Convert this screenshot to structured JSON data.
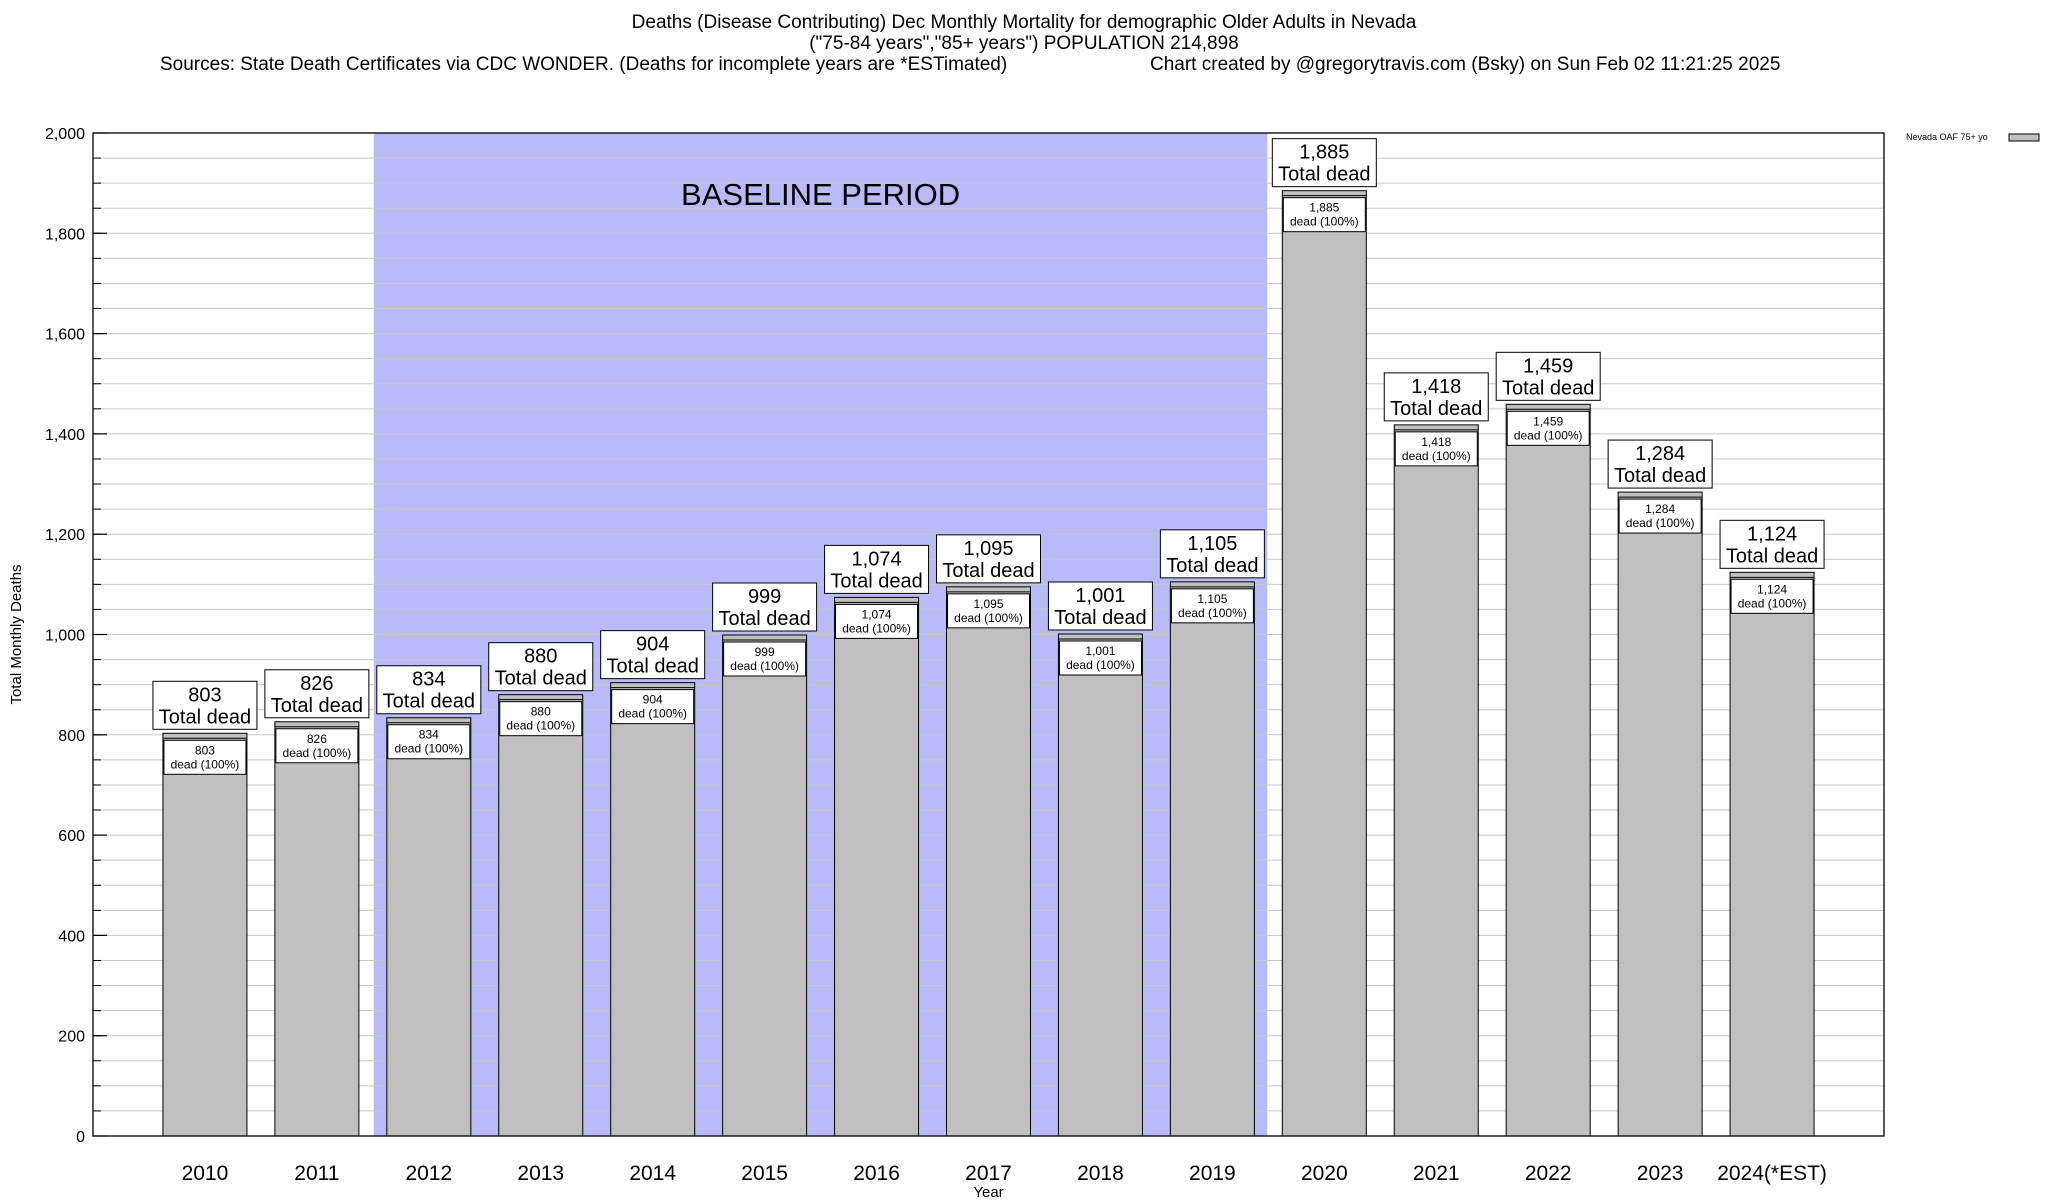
{
  "header": {
    "title_line1": "Deaths (Disease Contributing) Dec Monthly Mortality for demographic Older Adults in Nevada",
    "title_line2": "(\"75-84 years\",\"85+ years\") POPULATION 214,898",
    "sources": "Sources: State Death Certificates via CDC WONDER. (Deaths for incomplete years are *ESTimated)",
    "credit": "Chart created by @gregorytravis.com (Bsky) on Sun Feb 02 11:21:25 2025"
  },
  "colors": {
    "bar_fill": "#c0c0c0",
    "baseline_fill": "#babaf8",
    "grid": "#c8c8c8"
  },
  "chart_data": {
    "type": "bar",
    "categories": [
      "2010",
      "2011",
      "2012",
      "2013",
      "2014",
      "2015",
      "2016",
      "2017",
      "2018",
      "2019",
      "2020",
      "2021",
      "2022",
      "2023",
      "2024(*EST)"
    ],
    "series": [
      {
        "name": "Nevada OAF 75+ yo",
        "values": [
          803,
          826,
          834,
          880,
          904,
          999,
          1074,
          1095,
          1001,
          1105,
          1885,
          1418,
          1459,
          1284,
          1124
        ]
      }
    ],
    "value_labels": [
      "803",
      "826",
      "834",
      "880",
      "904",
      "999",
      "1,074",
      "1,095",
      "1,001",
      "1,105",
      "1,885",
      "1,418",
      "1,459",
      "1,284",
      "1,124"
    ],
    "label_top_suffix": "Total dead",
    "label_inner_suffix": "dead (100%)",
    "xlabel": "Year",
    "ylabel": "Total Monthly Deaths",
    "ylim": [
      0,
      2000
    ],
    "yticks": [
      0,
      200,
      400,
      600,
      800,
      1000,
      1200,
      1400,
      1600,
      1800,
      2000
    ],
    "ytick_labels": [
      "0",
      "200",
      "400",
      "600",
      "800",
      "1,000",
      "1,200",
      "1,400",
      "1,600",
      "1,800",
      "2,000"
    ],
    "grid": true,
    "legend_position": "top-right",
    "annotation": {
      "text": "BASELINE PERIOD",
      "from_category": "2012",
      "to_category": "2019"
    }
  }
}
